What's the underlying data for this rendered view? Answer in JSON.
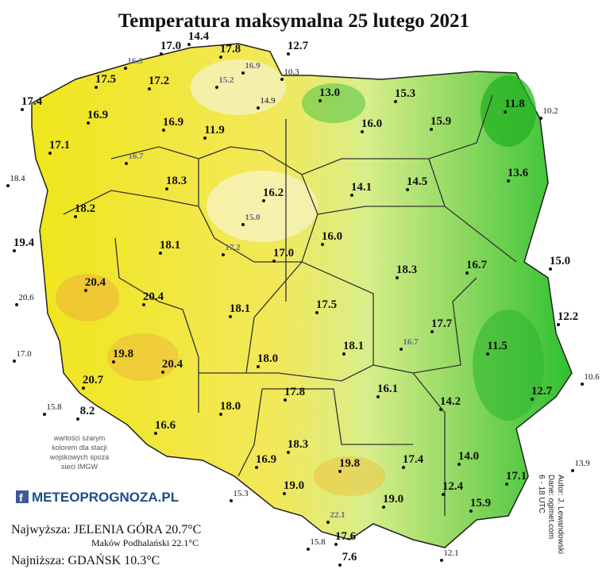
{
  "title": "Temperatura maksymalna 25 lutego 2021",
  "stations": [
    "17.0",
    "14.4",
    "17.8",
    "12.7",
    "17.5",
    "17.2",
    "17.4",
    "13.0",
    "15.3",
    "11.8",
    "16.9",
    "16.9",
    "16.0",
    "15.9",
    "17.1",
    "11.9",
    "13.6",
    "18.3",
    "16.2",
    "14.1",
    "14.5",
    "18.2",
    "19.4",
    "16.0",
    "18.1",
    "17.0",
    "15.0",
    "16.7",
    "18.3",
    "20.4",
    "20.4",
    "17.5",
    "18.1",
    "12.2",
    "17.7",
    "11.5",
    "18.1",
    "18.0",
    "19.8",
    "20.4",
    "20.7",
    "16.1",
    "12.7",
    "14.2",
    "17.8",
    "18.0",
    "16.6",
    "8.2",
    "14.0",
    "16.9",
    "18.3",
    "19.8",
    "17.4",
    "17.1",
    "19.0",
    "12.4",
    "19.0",
    "15.9",
    "17.6",
    "7.6"
  ],
  "military_stations": [
    "16.3",
    "16.9",
    "15.2",
    "16.7",
    "15.0",
    "17.2",
    "16.7",
    "22.1"
  ],
  "border_stations": [
    "10.3",
    "14.9",
    "10.2",
    "18.4",
    "20.6",
    "17.0",
    "10.6",
    "15.8",
    "13.9",
    "15.3",
    "15.8",
    "12.1"
  ],
  "note": [
    "wartości szarym",
    "kolorem dla stacji",
    "wojskowych spoza",
    "sieci IMGW"
  ],
  "logo": "METEOPROGNOZA.PL",
  "summary": {
    "highest": "Najwyższa: JELENIA GÓRA  20.7°C",
    "highest_military": "Maków Podhalański 22.1°C",
    "lowest": "Najniższa: GDAŃSK 10.3°C"
  },
  "credits": [
    "Autor: J. Lewandowski",
    "Dane: ogimet.com",
    "6 - 18 UTC"
  ]
}
